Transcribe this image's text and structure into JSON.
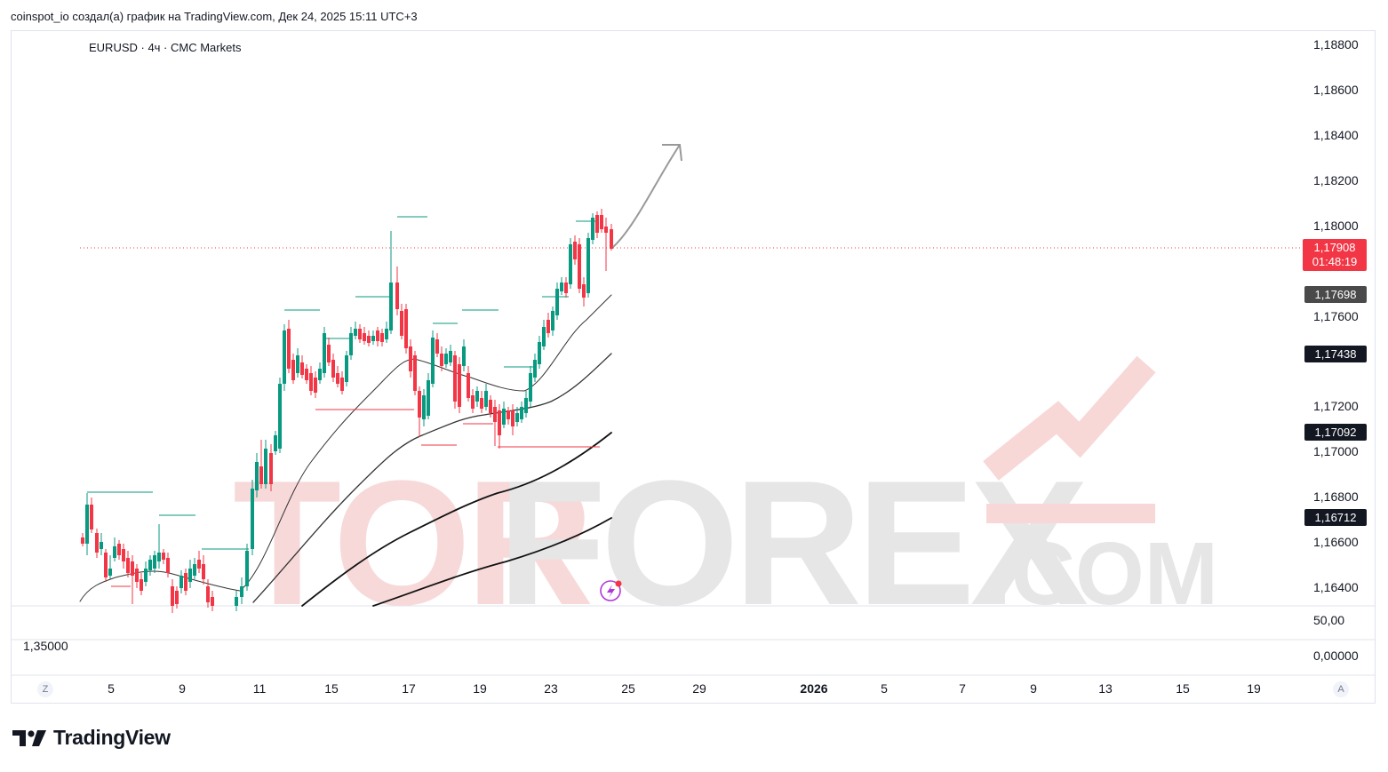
{
  "header": {
    "attribution": "coinspot_io создал(а) график на TradingView.com, Дек 24, 2025 15:11 UTC+3"
  },
  "chart": {
    "symbol_title": "EURUSD · 4ч · CMC Markets",
    "watermark": {
      "main": "TORFOREX",
      "suffix": ".COM"
    },
    "price_axis": [
      "1,18800",
      "1,18600",
      "1,18400",
      "1,18200",
      "1,18000",
      "1,17600",
      "1,17200",
      "1,17000",
      "1,16800",
      "1,16600",
      "1,16400"
    ],
    "price_labels": {
      "last_price": "1,17908",
      "countdown": "01:48:19",
      "ma1": "1,17698",
      "ma2": "1,17438",
      "ma3": "1,17092",
      "ma4": "1,16712"
    },
    "indicator_pane": {
      "top_value": "50,00",
      "bottom_value": "0,00000",
      "left_value": "1,35000"
    },
    "time_axis": [
      "5",
      "9",
      "11",
      "15",
      "17",
      "19",
      "23",
      "25",
      "29",
      "2026",
      "5",
      "7",
      "9",
      "13",
      "15",
      "19"
    ],
    "corner_left": "Z",
    "corner_right": "A",
    "colors": {
      "up": "#089981",
      "down": "#f23645",
      "last_price_bg": "#f23645",
      "ma_label_dark": "#131722",
      "ma_label_gray": "#4a4a4a"
    }
  },
  "footer": {
    "brand": "TradingView"
  }
}
